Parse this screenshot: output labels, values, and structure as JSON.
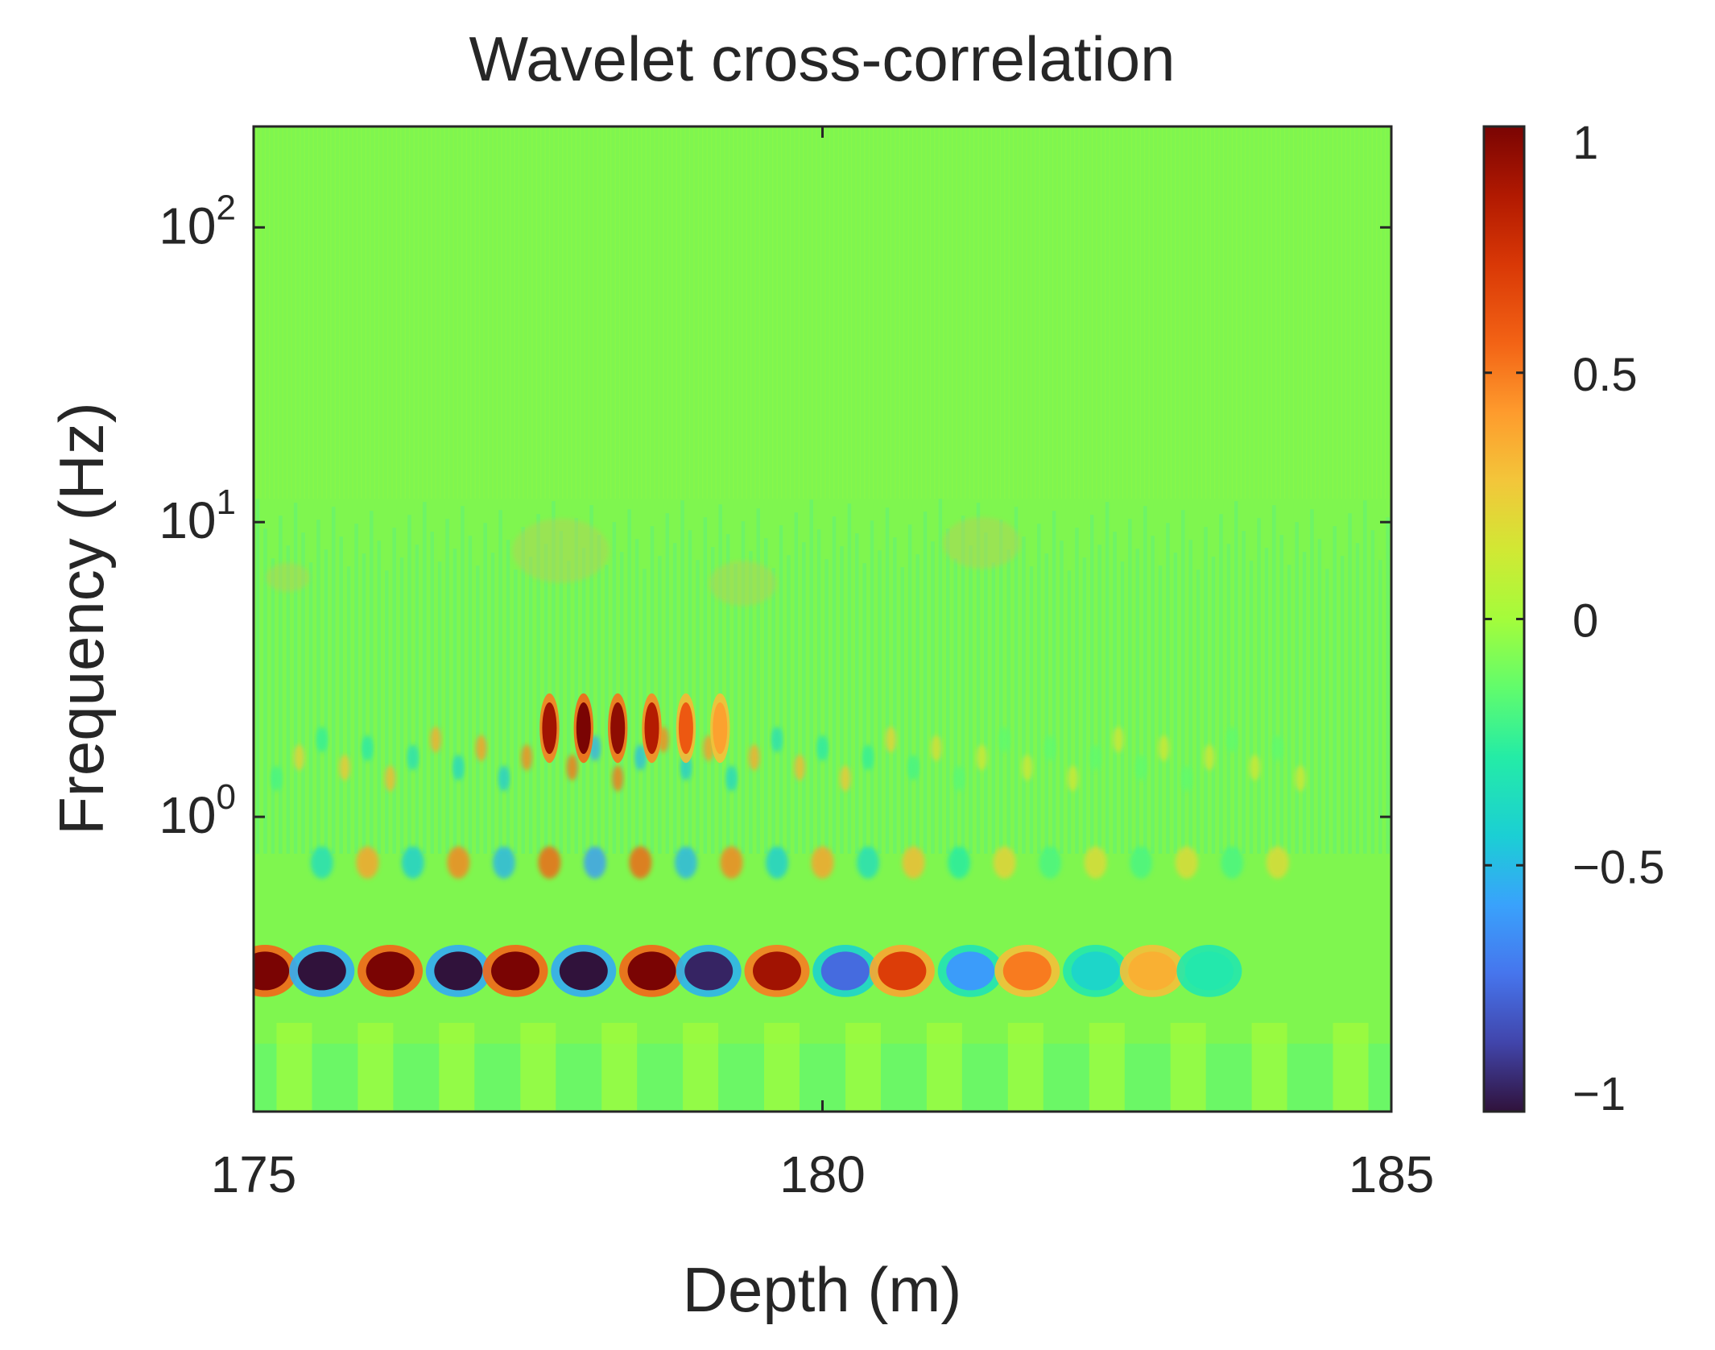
{
  "chart_data": {
    "type": "heatmap",
    "title": "Wavelet cross-correlation",
    "xlabel": "Depth (m)",
    "ylabel": "Frequency (Hz)",
    "xlim": [
      175,
      185
    ],
    "xticks": [
      175,
      180,
      185
    ],
    "xtick_labels": [
      "175",
      "180",
      "185"
    ],
    "ylim": [
      0.1,
      220
    ],
    "yscale": "log",
    "yticks": [
      1,
      10,
      100
    ],
    "ytick_labels": [
      {
        "base": "10",
        "exp": "0"
      },
      {
        "base": "10",
        "exp": "1"
      },
      {
        "base": "10",
        "exp": "2"
      }
    ],
    "colorbar": {
      "range": [
        -1,
        1
      ],
      "ticks": [
        -1,
        -0.5,
        0,
        0.5,
        1
      ],
      "tick_labels": [
        "−1",
        "−0.5",
        "0",
        "0.5",
        "1"
      ],
      "colormap": "turbo"
    },
    "features": [
      {
        "depth": 175.1,
        "frequency": 0.3,
        "value": 1.0
      },
      {
        "depth": 175.6,
        "frequency": 0.3,
        "value": -1.0
      },
      {
        "depth": 176.2,
        "frequency": 0.3,
        "value": 1.0
      },
      {
        "depth": 176.8,
        "frequency": 0.3,
        "value": -1.0
      },
      {
        "depth": 177.3,
        "frequency": 0.3,
        "value": 1.0
      },
      {
        "depth": 177.9,
        "frequency": 0.3,
        "value": -1.0
      },
      {
        "depth": 178.5,
        "frequency": 0.3,
        "value": 1.0
      },
      {
        "depth": 179.0,
        "frequency": 0.3,
        "value": -0.95
      },
      {
        "depth": 179.6,
        "frequency": 0.3,
        "value": 0.9
      },
      {
        "depth": 180.2,
        "frequency": 0.3,
        "value": -0.75
      },
      {
        "depth": 180.7,
        "frequency": 0.3,
        "value": 0.7
      },
      {
        "depth": 181.3,
        "frequency": 0.3,
        "value": -0.6
      },
      {
        "depth": 181.8,
        "frequency": 0.3,
        "value": 0.5
      },
      {
        "depth": 182.4,
        "frequency": 0.3,
        "value": -0.4
      },
      {
        "depth": 182.9,
        "frequency": 0.3,
        "value": 0.35
      },
      {
        "depth": 183.4,
        "frequency": 0.3,
        "value": -0.3
      },
      {
        "depth": 177.6,
        "frequency": 2.0,
        "value": 0.9
      },
      {
        "depth": 177.9,
        "frequency": 2.0,
        "value": 1.0
      },
      {
        "depth": 178.2,
        "frequency": 2.0,
        "value": 0.95
      },
      {
        "depth": 178.5,
        "frequency": 2.0,
        "value": 0.85
      },
      {
        "depth": 178.8,
        "frequency": 2.0,
        "value": 0.6
      },
      {
        "depth": 179.1,
        "frequency": 2.0,
        "value": 0.4
      }
    ]
  }
}
